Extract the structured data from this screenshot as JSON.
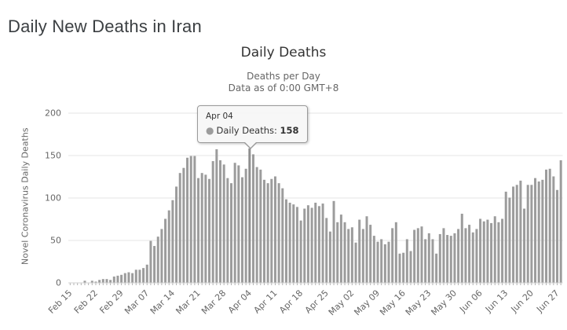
{
  "page": {
    "title": "Daily New Deaths in Iran"
  },
  "chart": {
    "title": "Daily Deaths",
    "subtitle_line1": "Deaths per Day",
    "subtitle_line2": "Data as of 0:00 GMT+8",
    "y_axis_title": "Novel Coronavirus Daily Deaths",
    "colors": {
      "bar": "#9c9c9c",
      "bar_highlight": "#8f8f8f",
      "grid": "#e6e6e6",
      "axis_line": "#d0d0d0",
      "tick": "#b0b0b0",
      "label": "#666666",
      "title": "#333333"
    }
  },
  "tooltip": {
    "date": "Apr 04",
    "marker": "●",
    "series_label": "Daily Deaths:",
    "value": "158"
  },
  "chart_data": {
    "type": "bar",
    "title": "Daily Deaths",
    "subtitle": "Deaths per Day — Data as of 0:00 GMT+8",
    "xlabel": "",
    "ylabel": "Novel Coronavirus Daily Deaths",
    "ylim": [
      0,
      200
    ],
    "y_ticks": [
      0,
      50,
      100,
      150,
      200
    ],
    "grid": true,
    "legend": "none",
    "tick_interval": 7,
    "highlighted_index": 49,
    "x_tick_labels": [
      "Feb 15",
      "Feb 22",
      "Feb 29",
      "Mar 07",
      "Mar 14",
      "Mar 21",
      "Mar 28",
      "Apr 04",
      "Apr 11",
      "Apr 18",
      "Apr 25",
      "May 02",
      "May 09",
      "May 16",
      "May 23",
      "May 30",
      "Jun 06",
      "Jun 13",
      "Jun 20",
      "Jun 27"
    ],
    "x": [
      "Feb 15",
      "Feb 16",
      "Feb 17",
      "Feb 18",
      "Feb 19",
      "Feb 20",
      "Feb 21",
      "Feb 22",
      "Feb 23",
      "Feb 24",
      "Feb 25",
      "Feb 26",
      "Feb 27",
      "Feb 28",
      "Feb 29",
      "Mar 01",
      "Mar 02",
      "Mar 03",
      "Mar 04",
      "Mar 05",
      "Mar 06",
      "Mar 07",
      "Mar 08",
      "Mar 09",
      "Mar 10",
      "Mar 11",
      "Mar 12",
      "Mar 13",
      "Mar 14",
      "Mar 15",
      "Mar 16",
      "Mar 17",
      "Mar 18",
      "Mar 19",
      "Mar 20",
      "Mar 21",
      "Mar 22",
      "Mar 23",
      "Mar 24",
      "Mar 25",
      "Mar 26",
      "Mar 27",
      "Mar 28",
      "Mar 29",
      "Mar 30",
      "Mar 31",
      "Apr 01",
      "Apr 02",
      "Apr 03",
      "Apr 04",
      "Apr 05",
      "Apr 06",
      "Apr 07",
      "Apr 08",
      "Apr 09",
      "Apr 10",
      "Apr 11",
      "Apr 12",
      "Apr 13",
      "Apr 14",
      "Apr 15",
      "Apr 16",
      "Apr 17",
      "Apr 18",
      "Apr 19",
      "Apr 20",
      "Apr 21",
      "Apr 22",
      "Apr 23",
      "Apr 24",
      "Apr 25",
      "Apr 26",
      "Apr 27",
      "Apr 28",
      "Apr 29",
      "Apr 30",
      "May 01",
      "May 02",
      "May 03",
      "May 04",
      "May 05",
      "May 06",
      "May 07",
      "May 08",
      "May 09",
      "May 10",
      "May 11",
      "May 12",
      "May 13",
      "May 14",
      "May 15",
      "May 16",
      "May 17",
      "May 18",
      "May 19",
      "May 20",
      "May 21",
      "May 22",
      "May 23",
      "May 24",
      "May 25",
      "May 26",
      "May 27",
      "May 28",
      "May 29",
      "May 30",
      "May 31",
      "Jun 01",
      "Jun 02",
      "Jun 03",
      "Jun 04",
      "Jun 05",
      "Jun 06",
      "Jun 07",
      "Jun 08",
      "Jun 09",
      "Jun 10",
      "Jun 11",
      "Jun 12",
      "Jun 13",
      "Jun 14",
      "Jun 15",
      "Jun 16",
      "Jun 17",
      "Jun 18",
      "Jun 19",
      "Jun 20",
      "Jun 21",
      "Jun 22",
      "Jun 23",
      "Jun 24",
      "Jun 25",
      "Jun 26",
      "Jun 27",
      "Jun 28"
    ],
    "values": [
      0,
      0,
      0,
      0,
      2,
      0,
      2,
      1,
      3,
      4,
      4,
      3,
      7,
      8,
      9,
      11,
      12,
      11,
      15,
      15,
      17,
      21,
      49,
      43,
      54,
      63,
      75,
      85,
      97,
      113,
      129,
      135,
      147,
      149,
      149,
      123,
      129,
      127,
      122,
      143,
      157,
      144,
      139,
      123,
      117,
      141,
      138,
      124,
      134,
      158,
      151,
      136,
      133,
      121,
      117,
      122,
      125,
      117,
      111,
      98,
      94,
      92,
      89,
      73,
      87,
      91,
      88,
      94,
      90,
      93,
      76,
      60,
      96,
      71,
      80,
      71,
      63,
      65,
      47,
      74,
      63,
      78,
      68,
      55,
      48,
      51,
      45,
      48,
      64,
      71,
      34,
      35,
      51,
      37,
      62,
      64,
      66,
      51,
      58,
      51,
      34,
      57,
      64,
      56,
      55,
      58,
      63,
      81,
      64,
      68,
      59,
      63,
      75,
      72,
      74,
      70,
      78,
      71,
      75,
      107,
      100,
      113,
      115,
      120,
      87,
      115,
      115,
      123,
      119,
      121,
      133,
      134,
      125,
      109,
      144
    ]
  }
}
